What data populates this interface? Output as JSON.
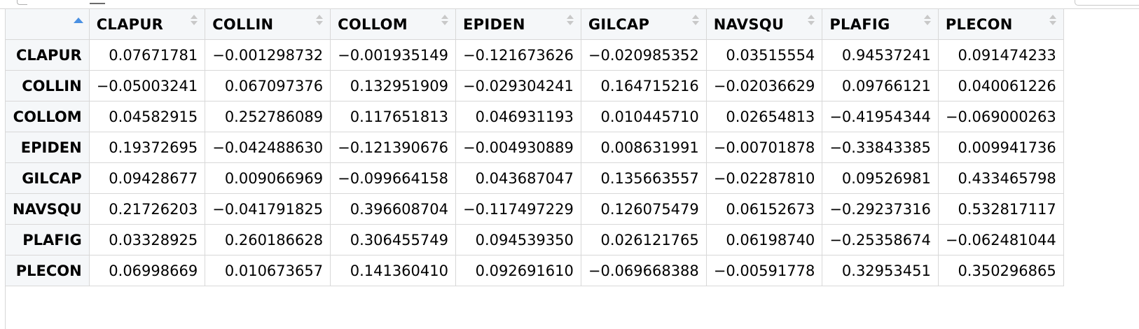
{
  "columns": [
    {
      "label": "CLAPUR",
      "icon": "sort-icon"
    },
    {
      "label": "COLLIN",
      "icon": "sort-icon"
    },
    {
      "label": "COLLOM",
      "icon": "sort-icon"
    },
    {
      "label": "EPIDEN",
      "icon": "sort-icon"
    },
    {
      "label": "GILCAP",
      "icon": "sort-icon"
    },
    {
      "label": "NAVSQU",
      "icon": "sort-icon"
    },
    {
      "label": "PLAFIG",
      "icon": "sort-icon"
    },
    {
      "label": "PLECON",
      "icon": "sort-icon"
    }
  ],
  "corner": {
    "icon": "sort-ascending-icon",
    "color": "#4a90e2"
  },
  "rows": [
    {
      "name": "CLAPUR",
      "values": [
        "0.07671781",
        "−0.001298732",
        "−0.001935149",
        "−0.121673626",
        "−0.020985352",
        "0.03515554",
        "0.94537241",
        "0.091474233"
      ]
    },
    {
      "name": "COLLIN",
      "values": [
        "−0.05003241",
        "0.067097376",
        "0.132951909",
        "−0.029304241",
        "0.164715216",
        "−0.02036629",
        "0.09766121",
        "0.040061226"
      ]
    },
    {
      "name": "COLLOM",
      "values": [
        "0.04582915",
        "0.252786089",
        "0.117651813",
        "0.046931193",
        "0.010445710",
        "0.02654813",
        "−0.41954344",
        "−0.069000263"
      ]
    },
    {
      "name": "EPIDEN",
      "values": [
        "0.19372695",
        "−0.042488630",
        "−0.121390676",
        "−0.004930889",
        "0.008631991",
        "−0.00701878",
        "−0.33843385",
        "0.009941736"
      ]
    },
    {
      "name": "GILCAP",
      "values": [
        "0.09428677",
        "0.009066969",
        "−0.099664158",
        "0.043687047",
        "0.135663557",
        "−0.02287810",
        "0.09526981",
        "0.433465798"
      ]
    },
    {
      "name": "NAVSQU",
      "values": [
        "0.21726203",
        "−0.041791825",
        "0.396608704",
        "−0.117497229",
        "0.126075479",
        "0.06152673",
        "−0.29237316",
        "0.532817117"
      ]
    },
    {
      "name": "PLAFIG",
      "values": [
        "0.03328925",
        "0.260186628",
        "0.306455749",
        "0.094539350",
        "0.026121765",
        "0.06198740",
        "−0.25358674",
        "−0.062481044"
      ]
    },
    {
      "name": "PLECON",
      "values": [
        "0.06998669",
        "0.010673657",
        "0.141360410",
        "0.092691610",
        "−0.069668388",
        "−0.00591778",
        "0.32953451",
        "0.350296865"
      ]
    }
  ]
}
